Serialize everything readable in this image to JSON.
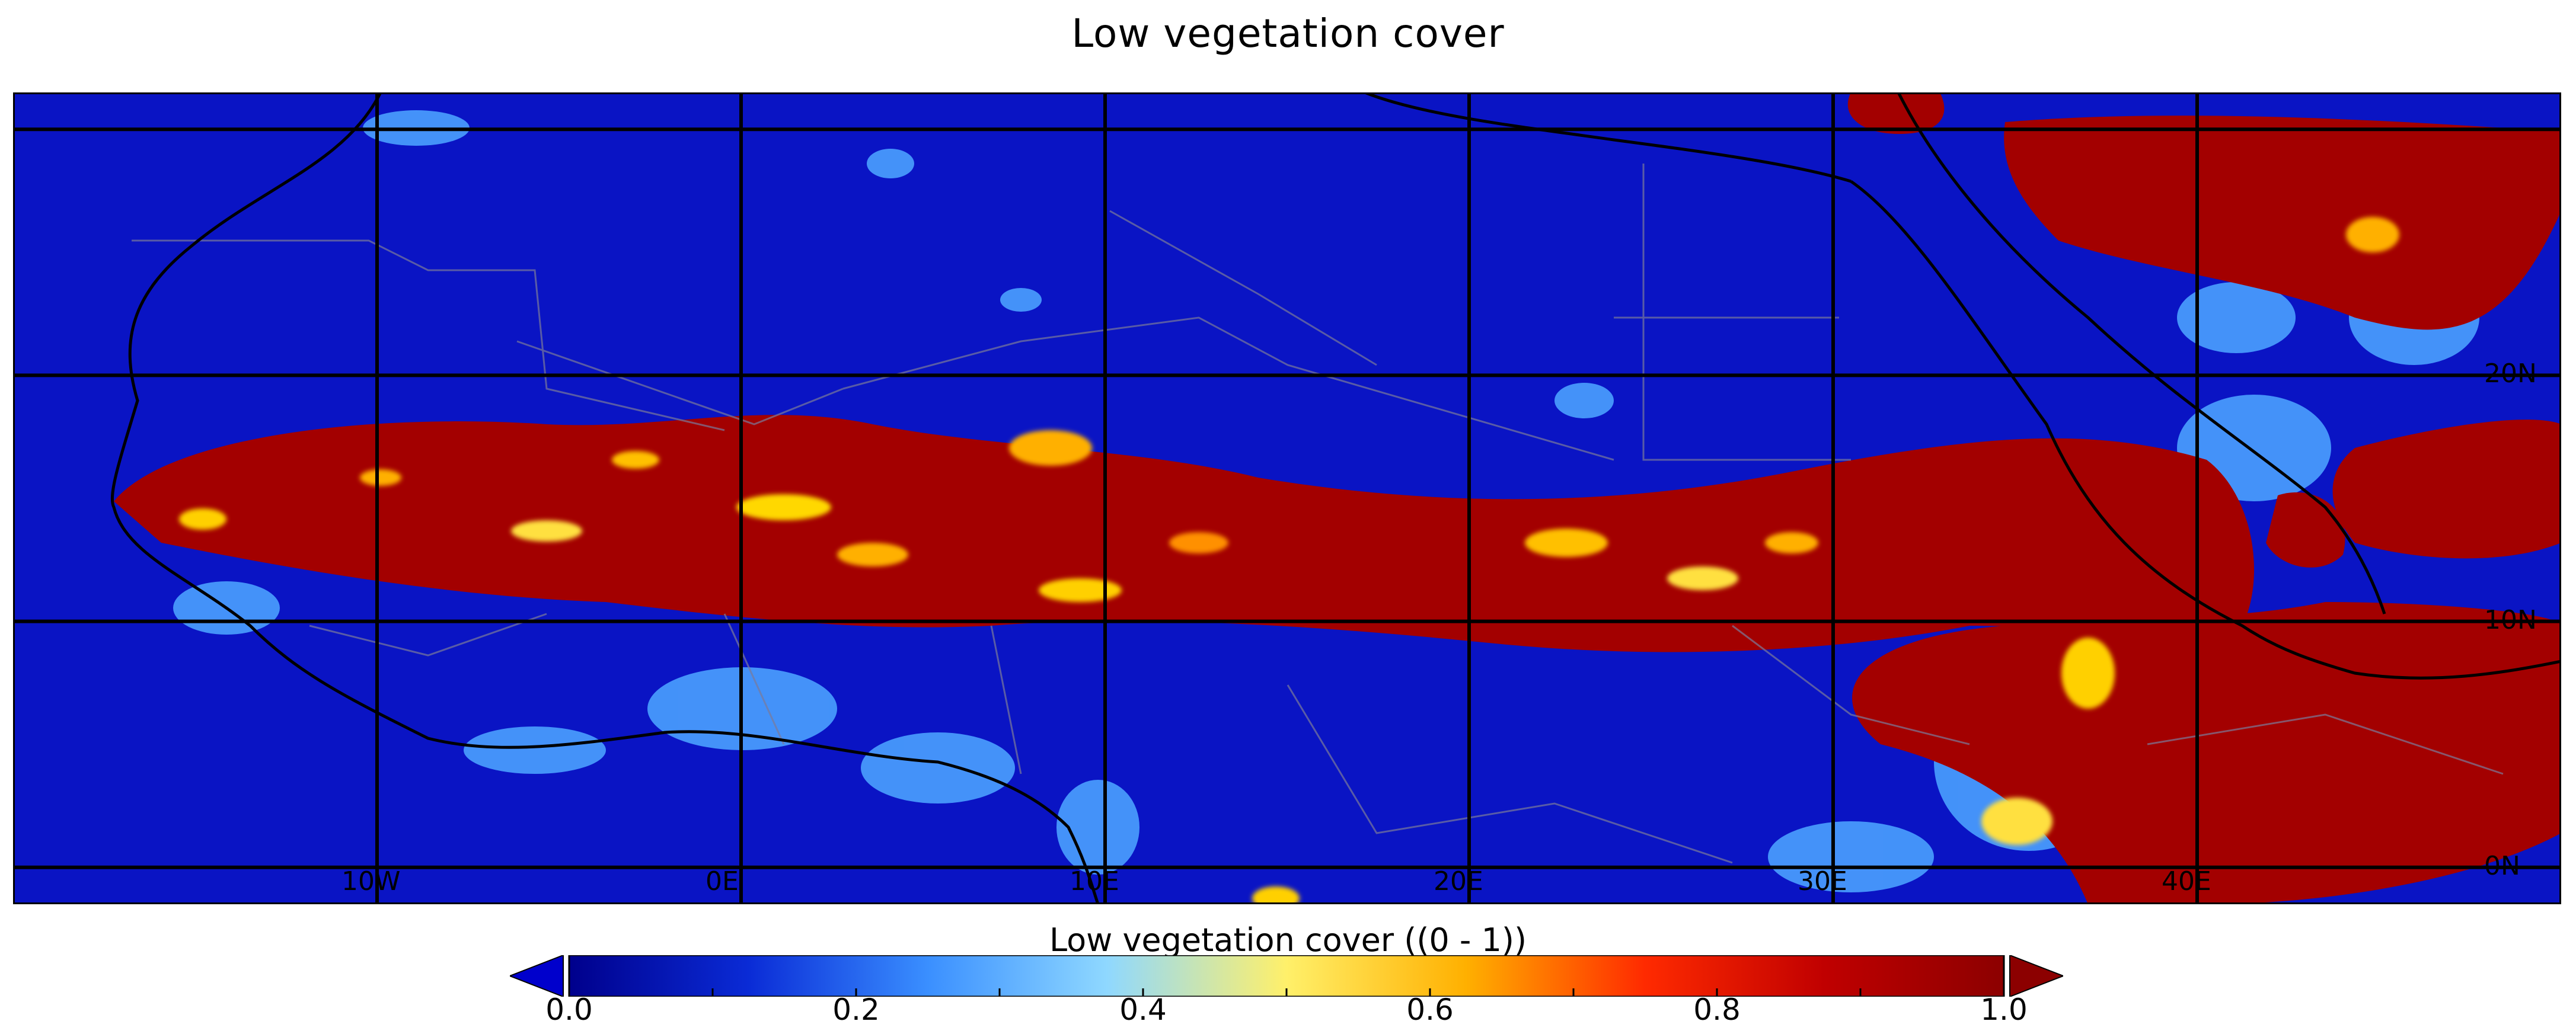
{
  "title": "Low vegetation cover",
  "map": {
    "lon_labels": [
      {
        "text": "10W",
        "lon": -10
      },
      {
        "text": "0E",
        "lon": 0
      },
      {
        "text": "10E",
        "lon": 10
      },
      {
        "text": "20E",
        "lon": 20
      },
      {
        "text": "30E",
        "lon": 30
      },
      {
        "text": "40E",
        "lon": 40
      }
    ],
    "lat_labels": [
      {
        "text": "20N",
        "lat": 20
      },
      {
        "text": "10N",
        "lat": 10
      },
      {
        "text": "0N",
        "lat": 0
      }
    ],
    "extent": {
      "lon_min": -20,
      "lon_max": 50,
      "lat_min": -1.5,
      "lat_max": 31.5
    },
    "gridlines": {
      "lon": [
        -10,
        0,
        10,
        20,
        30,
        40
      ],
      "lat": [
        0,
        10,
        20,
        30
      ]
    },
    "colors": {
      "ocean": "#0a14c4",
      "land_low": "#0a14c4",
      "high": "#a00000"
    }
  },
  "colorbar": {
    "label": "Low vegetation cover ((0 - 1))",
    "ticks": [
      "0.0",
      "0.2",
      "0.4",
      "0.6",
      "0.8",
      "1.0"
    ],
    "tick_values": [
      0,
      0.2,
      0.4,
      0.6,
      0.8,
      1.0
    ],
    "range": [
      0,
      1
    ],
    "colors": [
      "#00008c",
      "#0a2bd6",
      "#3a8fff",
      "#8fd8ff",
      "#fff06a",
      "#ffb000",
      "#ff2a00",
      "#c00000",
      "#8c0000"
    ]
  }
}
